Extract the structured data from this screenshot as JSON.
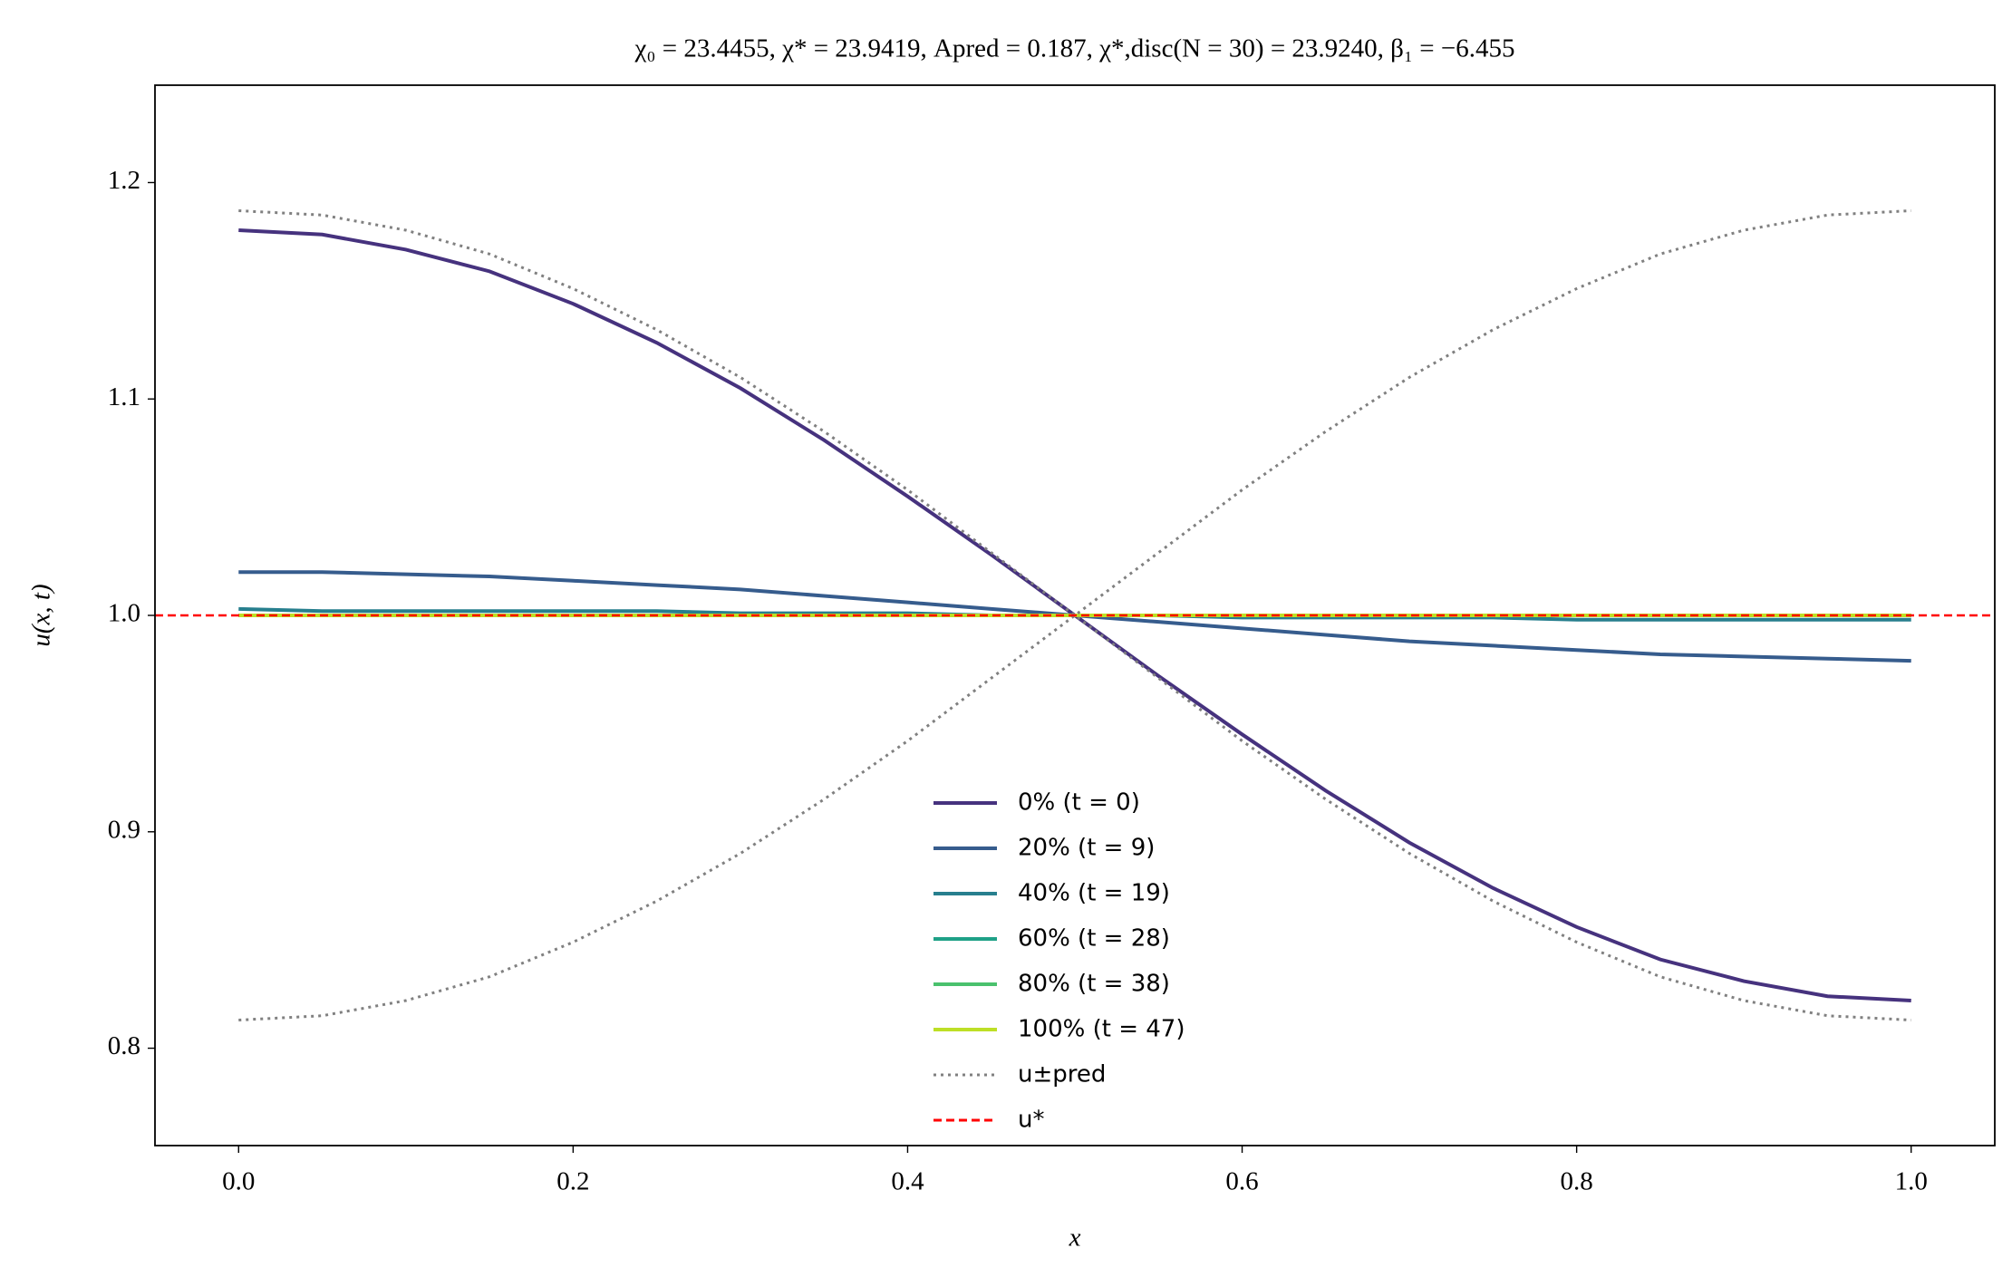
{
  "chart_data": {
    "type": "line",
    "title": "χ₀ = 23.4455,  χ* = 23.9419,  Apred = 0.187,  χ*,disc(N = 30) = 23.9240,  β₁ = −6.455",
    "x_label": "x",
    "y_label": "u(x, t)",
    "x": [
      0,
      0.05,
      0.1,
      0.15,
      0.2,
      0.25,
      0.3,
      0.35,
      0.4,
      0.45,
      0.5,
      0.55,
      0.6,
      0.65,
      0.7,
      0.75,
      0.8,
      0.85,
      0.9,
      0.95,
      1
    ],
    "series": [
      {
        "name": "0% (t = 0)",
        "color": "#46327e",
        "style": "solid",
        "values": [
          1.178,
          1.176,
          1.169,
          1.159,
          1.144,
          1.126,
          1.105,
          1.081,
          1.055,
          1.028,
          1.0,
          0.972,
          0.945,
          0.919,
          0.895,
          0.874,
          0.856,
          0.841,
          0.831,
          0.824,
          0.822
        ]
      },
      {
        "name": "20% (t = 9)",
        "color": "#365c8d",
        "style": "solid",
        "values": [
          1.02,
          1.02,
          1.019,
          1.018,
          1.016,
          1.014,
          1.012,
          1.009,
          1.006,
          1.003,
          1.0,
          0.997,
          0.994,
          0.991,
          0.988,
          0.986,
          0.984,
          0.982,
          0.981,
          0.98,
          0.979
        ]
      },
      {
        "name": "40% (t = 19)",
        "color": "#277f8e",
        "style": "solid",
        "values": [
          1.003,
          1.002,
          1.002,
          1.002,
          1.002,
          1.002,
          1.001,
          1.001,
          1.001,
          1.0,
          1.0,
          1.0,
          0.999,
          0.999,
          0.999,
          0.999,
          0.998,
          0.998,
          0.998,
          0.998,
          0.998
        ]
      },
      {
        "name": "60% (t = 28)",
        "color": "#1fa187",
        "style": "solid",
        "values": [
          1.0,
          1.0,
          1.0,
          1.0,
          1.0,
          1.0,
          1.0,
          1.0,
          1.0,
          1.0,
          1.0,
          1.0,
          1.0,
          1.0,
          1.0,
          1.0,
          1.0,
          1.0,
          1.0,
          1.0,
          1.0
        ]
      },
      {
        "name": "80% (t = 38)",
        "color": "#4ac16d",
        "style": "solid",
        "values": [
          1.0,
          1.0,
          1.0,
          1.0,
          1.0,
          1.0,
          1.0,
          1.0,
          1.0,
          1.0,
          1.0,
          1.0,
          1.0,
          1.0,
          1.0,
          1.0,
          1.0,
          1.0,
          1.0,
          1.0,
          1.0
        ]
      },
      {
        "name": "100% (t = 47)",
        "color": "#bddf26",
        "style": "solid",
        "values": [
          1.0,
          1.0,
          1.0,
          1.0,
          1.0,
          1.0,
          1.0,
          1.0,
          1.0,
          1.0,
          1.0,
          1.0,
          1.0,
          1.0,
          1.0,
          1.0,
          1.0,
          1.0,
          1.0,
          1.0,
          1.0
        ]
      },
      {
        "name": "u±pred",
        "color": "#808080",
        "style": "dotted",
        "values": [
          1.187,
          1.185,
          1.178,
          1.167,
          1.151,
          1.132,
          1.11,
          1.085,
          1.058,
          1.029,
          1.0,
          0.971,
          0.942,
          0.915,
          0.89,
          0.868,
          0.849,
          0.833,
          0.822,
          0.815,
          0.813
        ],
        "mirror_values": [
          0.813,
          0.815,
          0.822,
          0.833,
          0.849,
          0.868,
          0.89,
          0.915,
          0.942,
          0.971,
          1.0,
          1.029,
          1.058,
          1.085,
          1.11,
          1.132,
          1.151,
          1.167,
          1.178,
          1.185,
          1.187
        ]
      }
    ],
    "reference_line": {
      "name": "u*",
      "value": 1.0,
      "color": "#ff0000",
      "style": "dashed"
    },
    "xlim": [
      -0.05,
      1.05
    ],
    "ylim": [
      0.755,
      1.245
    ],
    "xticks": [
      {
        "value": 0,
        "label": "0.0"
      },
      0.2,
      0.4,
      0.6,
      0.8,
      {
        "value": 1,
        "label": "1.0"
      }
    ],
    "yticks": [
      0.8,
      0.9,
      {
        "value": 1,
        "label": "1.0"
      },
      1.1,
      1.2
    ],
    "legend": "lower center",
    "grid": false
  }
}
